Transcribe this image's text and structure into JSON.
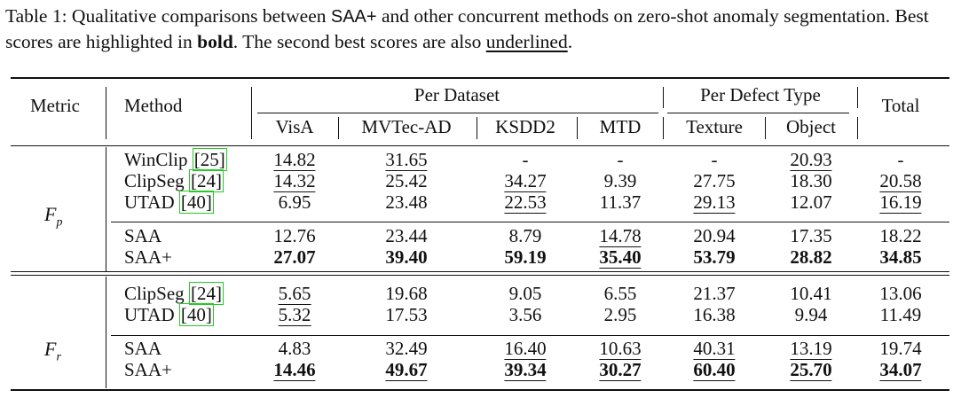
{
  "caption": {
    "prefix": "Table 1: Qualitative comparisons between ",
    "saa_plus": "SAA+",
    "mid": " and other concurrent methods on zero-shot anomaly segmentation. Best scores are highlighted in ",
    "bold_word": "bold",
    "mid2": ". The second best scores are also ",
    "underlined_word": "underlined",
    "suffix": "."
  },
  "header": {
    "metric": "Metric",
    "method": "Method",
    "per_dataset": "Per Dataset",
    "per_defect_type": "Per Defect Type",
    "total": "Total",
    "columns": [
      "VisA",
      "MVTec-AD",
      "KSDD2",
      "MTD",
      "Texture",
      "Object"
    ]
  },
  "metric_fp": {
    "symbol": "F",
    "sub": "p"
  },
  "metric_fr": {
    "symbol": "F",
    "sub": "r"
  },
  "rows_fp": [
    {
      "method": "WinClip ",
      "cite": "25",
      "values": [
        "14.82",
        "31.65",
        "-",
        "-",
        "-",
        "20.93",
        "-"
      ]
    },
    {
      "method": "ClipSeg ",
      "cite": "24",
      "values": [
        "14.32",
        "25.42",
        "34.27",
        "9.39",
        "27.75",
        "18.30",
        "20.58"
      ]
    },
    {
      "method": "UTAD ",
      "cite": "40",
      "values": [
        "6.95",
        "23.48",
        "22.53",
        "11.37",
        "29.13",
        "12.07",
        "16.19"
      ]
    },
    {
      "method": "SAA",
      "cite": "",
      "values": [
        "12.76",
        "23.44",
        "8.79",
        "14.78",
        "20.94",
        "17.35",
        "18.22"
      ]
    },
    {
      "method": "SAA+",
      "cite": "",
      "values": [
        "27.07",
        "39.40",
        "59.19",
        "35.40",
        "53.79",
        "28.82",
        "34.85"
      ]
    }
  ],
  "rows_fr": [
    {
      "method": "ClipSeg ",
      "cite": "24",
      "values": [
        "5.65",
        "19.68",
        "9.05",
        "6.55",
        "21.37",
        "10.41",
        "13.06"
      ]
    },
    {
      "method": "UTAD ",
      "cite": "40",
      "values": [
        "5.32",
        "17.53",
        "3.56",
        "2.95",
        "16.38",
        "9.94",
        "11.49"
      ]
    },
    {
      "method": "SAA",
      "cite": "",
      "values": [
        "4.83",
        "32.49",
        "16.40",
        "10.63",
        "40.31",
        "13.19",
        "19.74"
      ]
    },
    {
      "method": "SAA+",
      "cite": "",
      "values": [
        "14.46",
        "49.67",
        "39.34",
        "30.27",
        "60.40",
        "25.70",
        "34.07"
      ]
    }
  ],
  "colors": {
    "citation_box": "#22cc22",
    "text": "#111111"
  }
}
